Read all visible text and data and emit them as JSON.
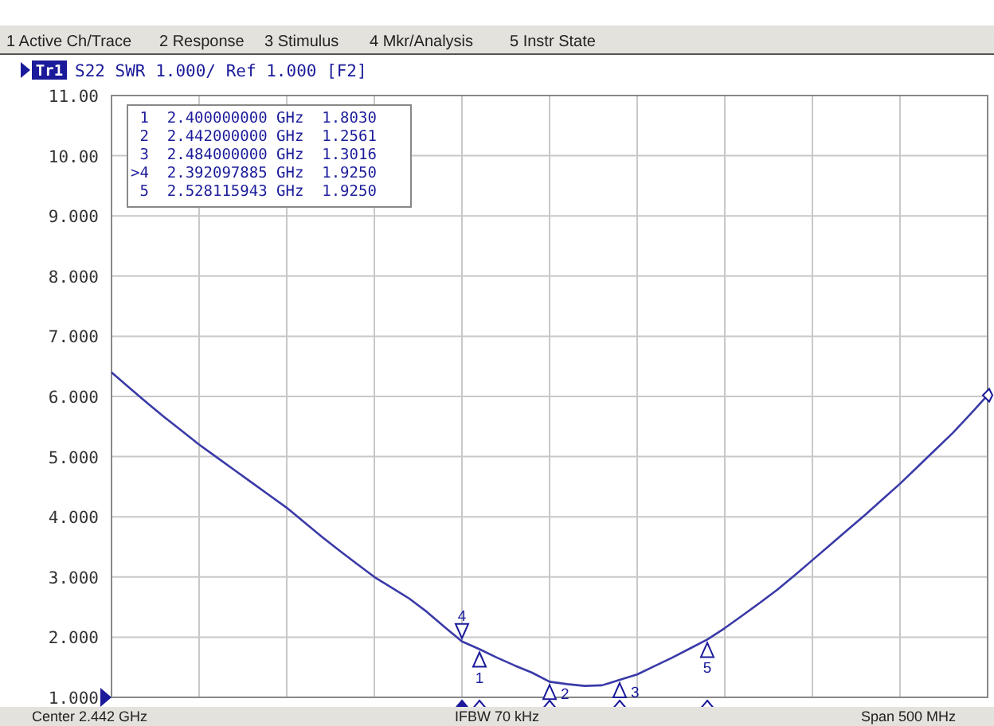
{
  "chart_data": {
    "type": "line",
    "title": "S22 SWR 1.000/ Ref 1.000 [F2]",
    "categories": [
      null,
      null,
      null,
      null,
      null,
      null,
      null,
      null,
      null,
      null,
      null,
      null,
      null,
      null,
      null,
      null,
      null,
      null,
      null,
      null,
      null,
      null,
      null,
      null,
      null,
      null,
      null,
      null,
      null,
      null,
      null,
      null,
      null,
      null,
      null,
      null,
      null,
      null,
      null,
      null,
      null,
      null,
      null,
      null,
      null,
      null,
      null,
      null,
      null,
      null,
      null
    ],
    "series": [
      {
        "color": "#3a3aa8",
        "values": [
          6.4,
          6.15,
          5.9,
          5.66,
          5.43,
          5.2,
          4.99,
          4.78,
          4.57,
          4.36,
          4.15,
          3.91,
          3.67,
          3.44,
          3.22,
          3.0,
          2.82,
          2.64,
          2.42,
          2.17,
          1.93,
          1.8,
          1.66,
          1.53,
          1.41,
          1.26,
          1.22,
          1.19,
          1.2,
          1.29,
          1.38,
          1.52,
          1.66,
          1.81,
          1.96,
          2.15,
          2.36,
          2.57,
          2.79,
          3.03,
          3.28,
          3.53,
          3.78,
          4.03,
          4.29,
          4.55,
          4.83,
          5.11,
          5.39,
          5.7,
          6.02
        ]
      }
    ],
    "ylim": [
      1,
      11
    ],
    "yticks": [
      {
        "value": 1,
        "label": "1.000"
      },
      {
        "value": 2,
        "label": "2.000"
      },
      {
        "value": 3,
        "label": "3.000"
      },
      {
        "value": 4,
        "label": "4.000"
      },
      {
        "value": 5,
        "label": "5.000"
      },
      {
        "value": 6,
        "label": "6.000"
      },
      {
        "value": 7,
        "label": "7.000"
      },
      {
        "value": 8,
        "label": "8.000"
      },
      {
        "value": 9,
        "label": "9.000"
      },
      {
        "value": 10,
        "label": "10.00"
      },
      {
        "value": 11,
        "label": "11.00"
      }
    ],
    "grid": true,
    "marker": "none",
    "line_style": "solid",
    "annotations": [
      "1 Active Ch/Trace",
      "2 Response",
      "3 Stimulus",
      "4 Mkr/Analysis",
      "5 Instr State",
      "Tr1",
      " 1  2.400000000 GHz  1.8030",
      " 2  2.442000000 GHz  1.2561",
      " 3  2.484000000 GHz  1.3016",
      ">4  2.392097885 GHz  1.9250",
      " 5  2.528115943 GHz  1.9250",
      "Center 2.442 GHz",
      "IFBW 70 kHz",
      "Span 500 MHz",
      "1",
      "2",
      "3",
      "4",
      "5"
    ]
  }
}
